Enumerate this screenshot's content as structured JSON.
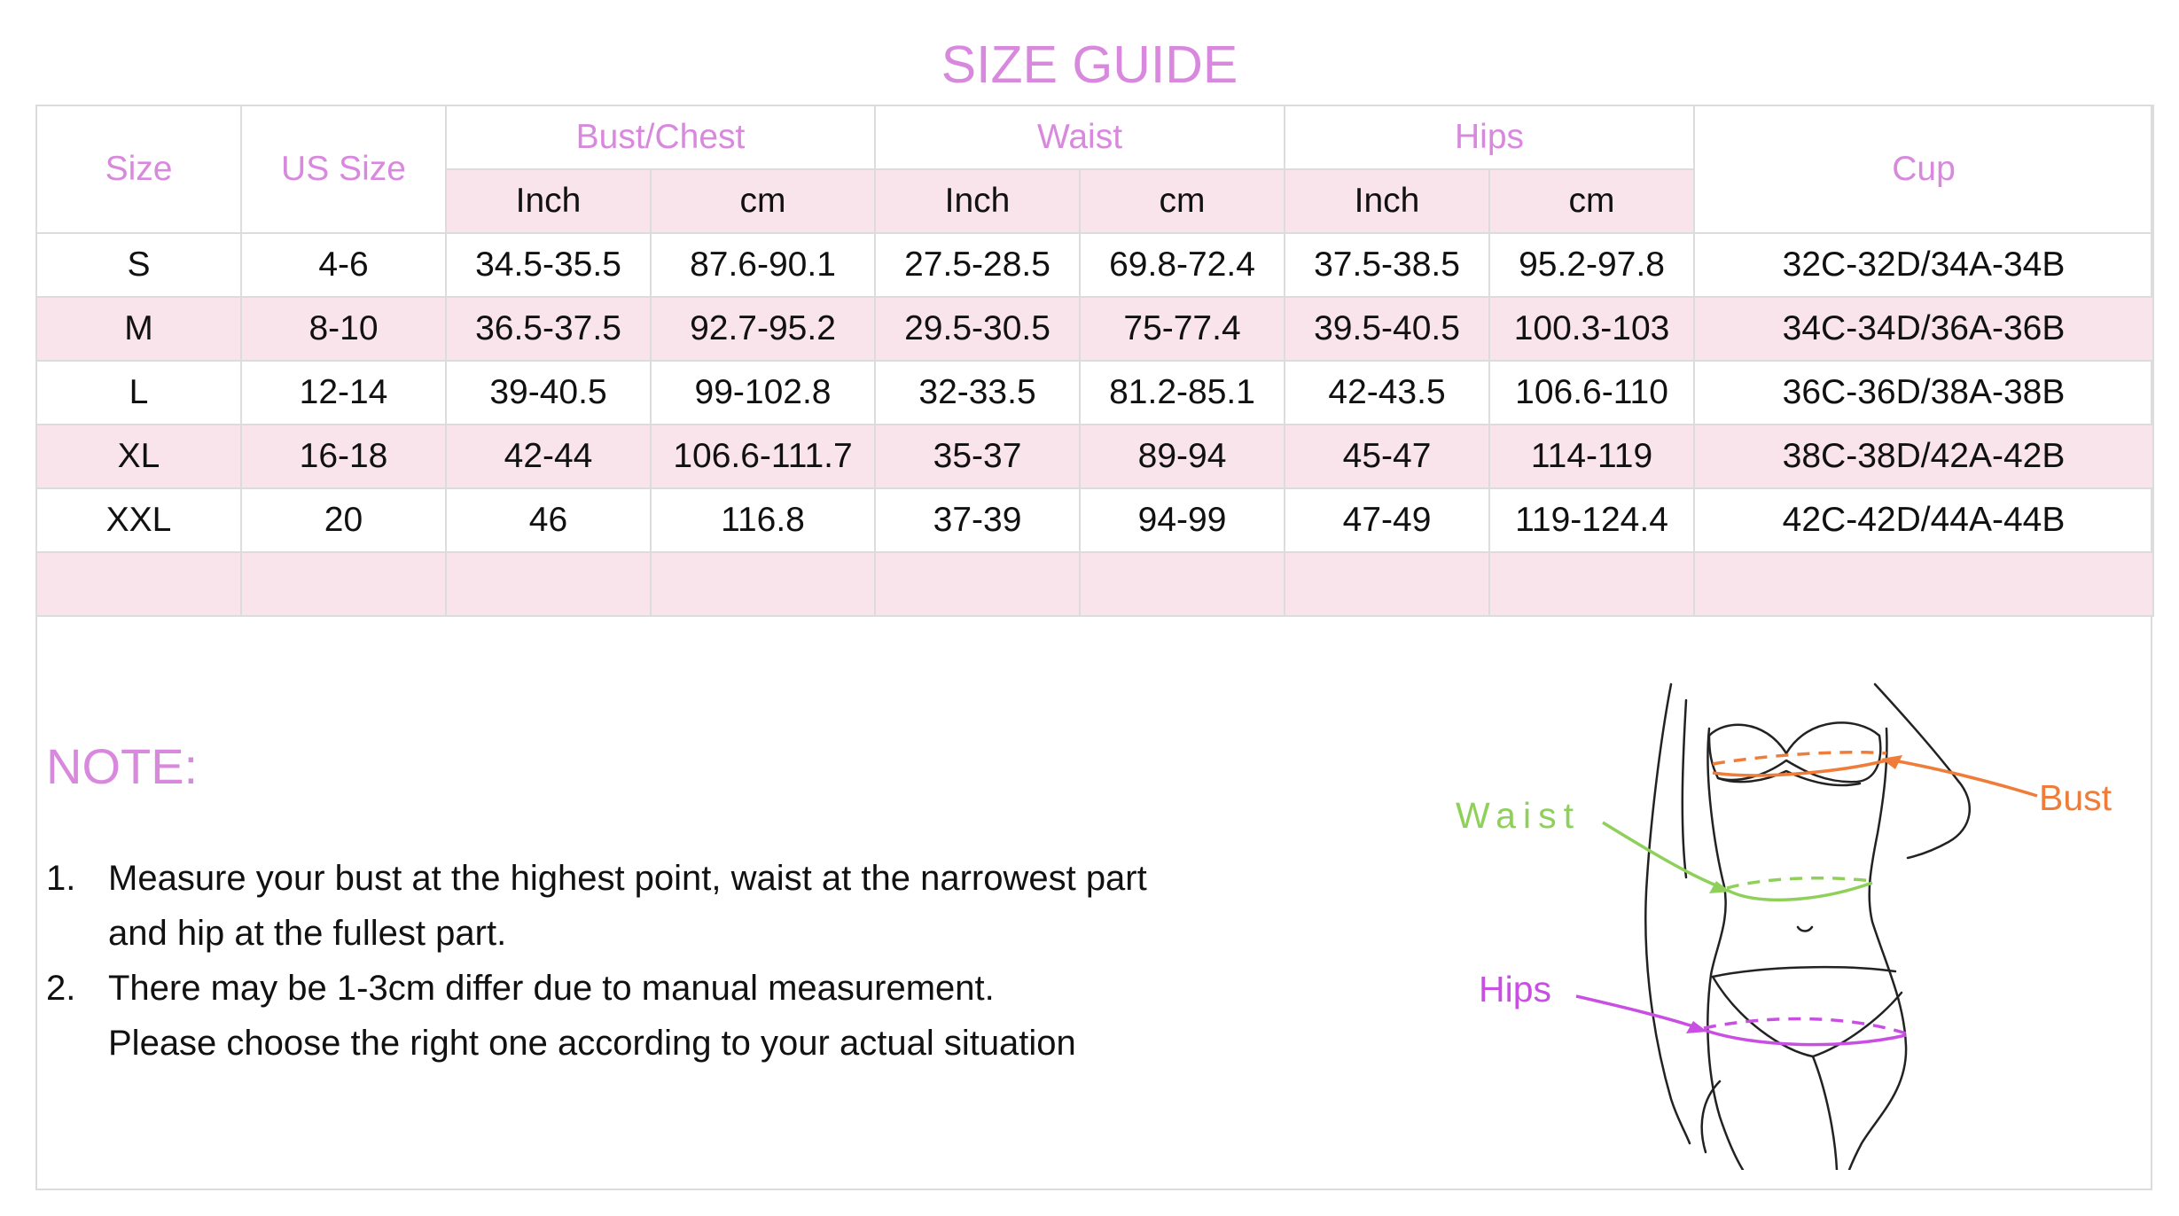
{
  "title": "SIZE GUIDE",
  "colors": {
    "accent_pink": "#d889de",
    "row_pink": "#f8e4ea",
    "bust": "#ef7c38",
    "waist": "#8fd05b",
    "hips": "#c84fe2"
  },
  "table": {
    "header": {
      "size": "Size",
      "us_size": "US Size",
      "bust": "Bust/Chest",
      "waist": "Waist",
      "hips": "Hips",
      "cup": "Cup",
      "inch": "Inch",
      "cm": "cm"
    },
    "rows": [
      [
        "S",
        "4-6",
        "34.5-35.5",
        "87.6-90.1",
        "27.5-28.5",
        "69.8-72.4",
        "37.5-38.5",
        "95.2-97.8",
        "32C-32D/34A-34B"
      ],
      [
        "M",
        "8-10",
        "36.5-37.5",
        "92.7-95.2",
        "29.5-30.5",
        "75-77.4",
        "39.5-40.5",
        "100.3-103",
        "34C-34D/36A-36B"
      ],
      [
        "L",
        "12-14",
        "39-40.5",
        "99-102.8",
        "32-33.5",
        "81.2-85.1",
        "42-43.5",
        "106.6-110",
        "36C-36D/38A-38B"
      ],
      [
        "XL",
        "16-18",
        "42-44",
        "106.6-111.7",
        "35-37",
        "89-94",
        "45-47",
        "114-119",
        "38C-38D/42A-42B"
      ],
      [
        "XXL",
        "20",
        "46",
        "116.8",
        "37-39",
        "94-99",
        "47-49",
        "119-124.4",
        "42C-42D/44A-44B"
      ]
    ]
  },
  "note": {
    "heading": "NOTE:",
    "items": [
      {
        "num": "1.",
        "lines": [
          "Measure your bust at the highest point, waist at the narrowest part",
          "and hip at the fullest part."
        ]
      },
      {
        "num": "2.",
        "lines": [
          "There may be 1-3cm differ due to manual measurement.",
          "Please choose the right one according to your actual situation"
        ]
      }
    ]
  },
  "figure": {
    "waist_label": "Waist",
    "bust_label": "Bust",
    "hips_label": "Hips"
  }
}
